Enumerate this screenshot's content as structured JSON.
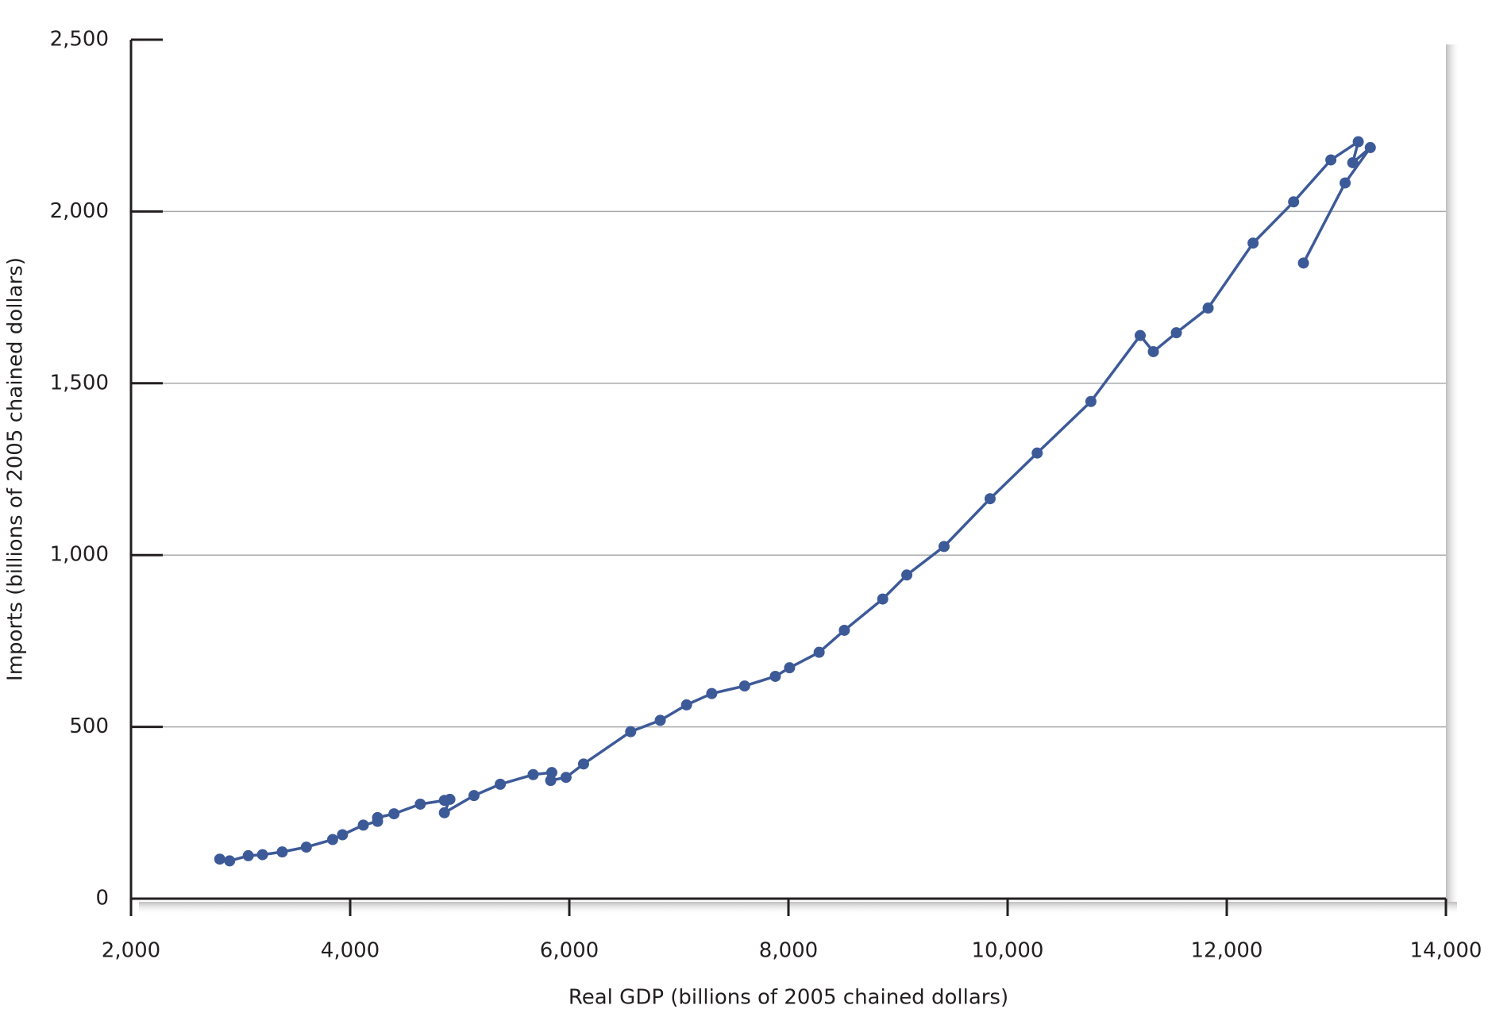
{
  "chart_data": {
    "type": "line",
    "x_label": "Real GDP (billions of 2005 chained dollars)",
    "y_label": "Imports (billions of 2005 chained dollars)",
    "color": "#3d5a98",
    "markers": true,
    "grid": true,
    "x": [
      2810,
      2900,
      3070,
      3200,
      3380,
      3600,
      3840,
      3930,
      4120,
      4250,
      4250,
      4400,
      4640,
      4860,
      4910,
      4860,
      5130,
      5370,
      5670,
      5840,
      5830,
      5970,
      6130,
      6560,
      6830,
      7070,
      7300,
      7600,
      7880,
      8010,
      8280,
      8510,
      8860,
      9080,
      9420,
      9840,
      10270,
      10760,
      11210,
      11330,
      11540,
      11830,
      12240,
      12610,
      12950,
      13200,
      13150,
      13310,
      13080,
      12700
    ],
    "values": [
      115,
      110,
      125,
      128,
      136,
      150,
      172,
      186,
      214,
      225,
      236,
      247,
      275,
      286,
      289,
      250,
      300,
      333,
      361,
      367,
      344,
      353,
      392,
      486,
      519,
      564,
      597,
      619,
      647,
      672,
      717,
      781,
      872,
      942,
      1025,
      1164,
      1297,
      1447,
      1639,
      1592,
      1647,
      1719,
      1908,
      2028,
      2150,
      2203,
      2142,
      2186,
      2083,
      1850
    ],
    "xlim": [
      2000,
      14000
    ],
    "xticks": [
      {
        "value": 2000,
        "label": "2,000"
      },
      {
        "value": 4000,
        "label": "4,000"
      },
      {
        "value": 6000,
        "label": "6,000"
      },
      {
        "value": 8000,
        "label": "8,000"
      },
      {
        "value": 10000,
        "label": "10,000"
      },
      {
        "value": 12000,
        "label": "12,000"
      },
      {
        "value": 14000,
        "label": "14,000"
      }
    ],
    "ylim": [
      0,
      2500
    ],
    "yticks": [
      0,
      500,
      {
        "value": 1000,
        "label": "1,000"
      },
      {
        "value": 1500,
        "label": "1,500"
      },
      {
        "value": 2000,
        "label": "2,000"
      },
      {
        "value": 2500,
        "label": "2,500"
      }
    ]
  }
}
